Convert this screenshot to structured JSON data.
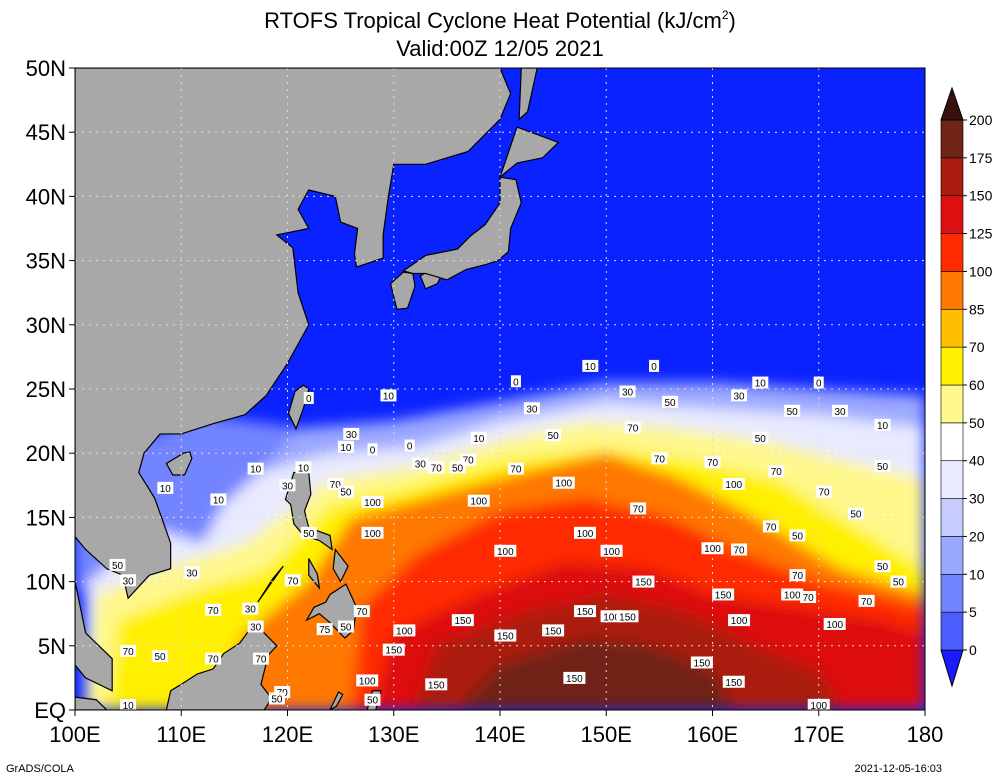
{
  "title": {
    "line1": "RTOFS Tropical Cyclone Heat Potential (kJ/cm",
    "sup": "2",
    "line1_end": ")",
    "line2": "Valid:00Z 12/05 2021"
  },
  "map": {
    "lon_range": [
      100,
      180
    ],
    "lat_range": [
      0,
      50
    ],
    "lon_ticks": [
      "100E",
      "110E",
      "120E",
      "130E",
      "140E",
      "150E",
      "160E",
      "170E",
      "180"
    ],
    "lat_ticks": [
      "EQ",
      "5N",
      "10N",
      "15N",
      "20N",
      "25N",
      "30N",
      "35N",
      "40N",
      "45N",
      "50N"
    ],
    "gridlines": "dotted",
    "land_color": "#a8a8a8",
    "ocean_cold_color": "#0a22ff"
  },
  "colorbar": {
    "labels": [
      "0",
      "5",
      "10",
      "20",
      "30",
      "40",
      "50",
      "60",
      "70",
      "85",
      "100",
      "125",
      "150",
      "175",
      "200"
    ],
    "colors": [
      "#1b1bff",
      "#4a5dff",
      "#7384ff",
      "#9ba8ff",
      "#c6ccff",
      "#e8eaff",
      "#ffffff",
      "#fff88c",
      "#fff000",
      "#ffbe00",
      "#ff7800",
      "#ff2a00",
      "#dd1111",
      "#aa1a10",
      "#702317",
      "#3a120d"
    ]
  },
  "contour_labels": [
    {
      "t": "10",
      "lon": 148.5,
      "lat": 26.8
    },
    {
      "t": "0",
      "lon": 154.5,
      "lat": 26.8
    },
    {
      "t": "0",
      "lon": 141.5,
      "lat": 25.6
    },
    {
      "t": "10",
      "lon": 164.5,
      "lat": 25.5
    },
    {
      "t": "0",
      "lon": 170.0,
      "lat": 25.5
    },
    {
      "t": "30",
      "lon": 152.0,
      "lat": 24.8
    },
    {
      "t": "10",
      "lon": 129.5,
      "lat": 24.5
    },
    {
      "t": "0",
      "lon": 122.0,
      "lat": 24.3
    },
    {
      "t": "50",
      "lon": 156.0,
      "lat": 24.0
    },
    {
      "t": "30",
      "lon": 162.5,
      "lat": 24.5
    },
    {
      "t": "30",
      "lon": 143.0,
      "lat": 23.5
    },
    {
      "t": "50",
      "lon": 167.5,
      "lat": 23.3
    },
    {
      "t": "30",
      "lon": 172.0,
      "lat": 23.3
    },
    {
      "t": "10",
      "lon": 176.0,
      "lat": 22.2
    },
    {
      "t": "70",
      "lon": 152.5,
      "lat": 22.0
    },
    {
      "t": "50",
      "lon": 145.0,
      "lat": 21.4
    },
    {
      "t": "30",
      "lon": 126.0,
      "lat": 21.5
    },
    {
      "t": "10",
      "lon": 138.0,
      "lat": 21.2
    },
    {
      "t": "0",
      "lon": 131.5,
      "lat": 20.6
    },
    {
      "t": "10",
      "lon": 125.5,
      "lat": 20.5
    },
    {
      "t": "0",
      "lon": 128.0,
      "lat": 20.3
    },
    {
      "t": "50",
      "lon": 164.5,
      "lat": 21.2
    },
    {
      "t": "70",
      "lon": 137.0,
      "lat": 19.5
    },
    {
      "t": "70",
      "lon": 155.0,
      "lat": 19.6
    },
    {
      "t": "70",
      "lon": 160.0,
      "lat": 19.3
    },
    {
      "t": "30",
      "lon": 132.5,
      "lat": 19.2
    },
    {
      "t": "70",
      "lon": 134.0,
      "lat": 18.9
    },
    {
      "t": "50",
      "lon": 136.0,
      "lat": 18.9
    },
    {
      "t": "10",
      "lon": 121.5,
      "lat": 18.9
    },
    {
      "t": "10",
      "lon": 117.0,
      "lat": 18.8
    },
    {
      "t": "70",
      "lon": 141.5,
      "lat": 18.8
    },
    {
      "t": "70",
      "lon": 166.0,
      "lat": 18.6
    },
    {
      "t": "50",
      "lon": 176.0,
      "lat": 19.0
    },
    {
      "t": "100",
      "lon": 146.0,
      "lat": 17.7
    },
    {
      "t": "100",
      "lon": 162.0,
      "lat": 17.6
    },
    {
      "t": "70",
      "lon": 124.5,
      "lat": 17.6
    },
    {
      "t": "50",
      "lon": 125.5,
      "lat": 17.0
    },
    {
      "t": "30",
      "lon": 120.0,
      "lat": 17.5
    },
    {
      "t": "70",
      "lon": 170.5,
      "lat": 17.0
    },
    {
      "t": "10",
      "lon": 108.5,
      "lat": 17.3
    },
    {
      "t": "10",
      "lon": 113.5,
      "lat": 16.4
    },
    {
      "t": "100",
      "lon": 128.0,
      "lat": 16.2
    },
    {
      "t": "100",
      "lon": 138.0,
      "lat": 16.3
    },
    {
      "t": "70",
      "lon": 153.0,
      "lat": 15.7
    },
    {
      "t": "50",
      "lon": 173.5,
      "lat": 15.3
    },
    {
      "t": "50",
      "lon": 122.0,
      "lat": 13.8
    },
    {
      "t": "100",
      "lon": 128.0,
      "lat": 13.8
    },
    {
      "t": "100",
      "lon": 148.0,
      "lat": 13.8
    },
    {
      "t": "70",
      "lon": 165.5,
      "lat": 14.3
    },
    {
      "t": "50",
      "lon": 168.0,
      "lat": 13.6
    },
    {
      "t": "100",
      "lon": 150.5,
      "lat": 12.4
    },
    {
      "t": "100",
      "lon": 140.5,
      "lat": 12.4
    },
    {
      "t": "100",
      "lon": 160.0,
      "lat": 12.6
    },
    {
      "t": "70",
      "lon": 162.5,
      "lat": 12.5
    },
    {
      "t": "50",
      "lon": 104.0,
      "lat": 11.3
    },
    {
      "t": "30",
      "lon": 111.0,
      "lat": 10.7
    },
    {
      "t": "50",
      "lon": 176.0,
      "lat": 11.2
    },
    {
      "t": "70",
      "lon": 168.0,
      "lat": 10.5
    },
    {
      "t": "30",
      "lon": 105.0,
      "lat": 10.1
    },
    {
      "t": "50",
      "lon": 177.5,
      "lat": 10.0
    },
    {
      "t": "70",
      "lon": 120.5,
      "lat": 10.1
    },
    {
      "t": "150",
      "lon": 153.5,
      "lat": 10.0
    },
    {
      "t": "150",
      "lon": 161.0,
      "lat": 9.0
    },
    {
      "t": "100",
      "lon": 167.5,
      "lat": 9.0
    },
    {
      "t": "70",
      "lon": 169.0,
      "lat": 8.8
    },
    {
      "t": "70",
      "lon": 174.5,
      "lat": 8.5
    },
    {
      "t": "70",
      "lon": 113.0,
      "lat": 7.8
    },
    {
      "t": "30",
      "lon": 116.5,
      "lat": 7.9
    },
    {
      "t": "70",
      "lon": 127.0,
      "lat": 7.7
    },
    {
      "t": "150",
      "lon": 148.0,
      "lat": 7.7
    },
    {
      "t": "100",
      "lon": 150.5,
      "lat": 7.3
    },
    {
      "t": "150",
      "lon": 152.0,
      "lat": 7.3
    },
    {
      "t": "150",
      "lon": 136.5,
      "lat": 7.0
    },
    {
      "t": "100",
      "lon": 162.5,
      "lat": 7.0
    },
    {
      "t": "100",
      "lon": 171.5,
      "lat": 6.7
    },
    {
      "t": "30",
      "lon": 117.0,
      "lat": 6.5
    },
    {
      "t": "75",
      "lon": 123.5,
      "lat": 6.3
    },
    {
      "t": "50",
      "lon": 125.5,
      "lat": 6.5
    },
    {
      "t": "100",
      "lon": 131.0,
      "lat": 6.2
    },
    {
      "t": "150",
      "lon": 145.0,
      "lat": 6.2
    },
    {
      "t": "150",
      "lon": 140.5,
      "lat": 5.8
    },
    {
      "t": "150",
      "lon": 130.0,
      "lat": 4.7
    },
    {
      "t": "70",
      "lon": 105.0,
      "lat": 4.6
    },
    {
      "t": "50",
      "lon": 108.0,
      "lat": 4.2
    },
    {
      "t": "70",
      "lon": 113.0,
      "lat": 4.0
    },
    {
      "t": "70",
      "lon": 117.5,
      "lat": 4.0
    },
    {
      "t": "150",
      "lon": 159.0,
      "lat": 3.7
    },
    {
      "t": "150",
      "lon": 147.0,
      "lat": 2.5
    },
    {
      "t": "100",
      "lon": 127.5,
      "lat": 2.3
    },
    {
      "t": "150",
      "lon": 134.0,
      "lat": 2.0
    },
    {
      "t": "150",
      "lon": 162.0,
      "lat": 2.2
    },
    {
      "t": "70",
      "lon": 119.5,
      "lat": 1.4
    },
    {
      "t": "50",
      "lon": 119.0,
      "lat": 0.9
    },
    {
      "t": "50",
      "lon": 128.0,
      "lat": 0.8
    },
    {
      "t": "100",
      "lon": 170.0,
      "lat": 0.4
    },
    {
      "t": "10",
      "lon": 105.0,
      "lat": 0.4
    }
  ],
  "footer": {
    "left": "GrADS/COLA",
    "right": "2021-12-05-16:03"
  }
}
